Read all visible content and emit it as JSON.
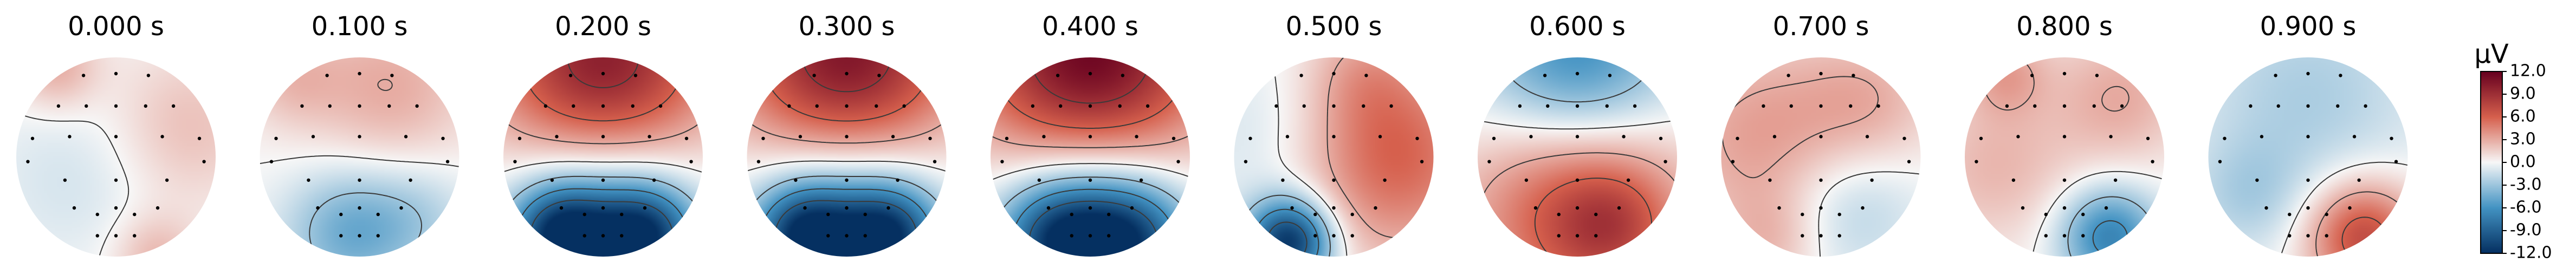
{
  "chart_data": {
    "type": "heatmap",
    "kind": "topomap-series",
    "colormap": "RdBu_r",
    "colors": {
      "neg_max": "#053061",
      "neg_mid": "#4393c3",
      "zero": "#f7f7f7",
      "pos_mid": "#d6604d",
      "pos_max": "#67001f",
      "contour": "#3a3a3a",
      "sensor": "#000000"
    },
    "colorbar": {
      "unit": "µV",
      "range": [
        -12.0,
        12.0
      ],
      "ticks": [
        12.0,
        9.0,
        6.0,
        3.0,
        0.0,
        -3.0,
        -6.0,
        -9.0,
        -12.0
      ],
      "tick_labels": [
        "12.0",
        "9.0",
        "6.0",
        "3.0",
        "0.0",
        "-3.0",
        "-6.0",
        "-9.0",
        "-12.0"
      ]
    },
    "contour_levels": [
      -9,
      -6,
      -3,
      0,
      3,
      6,
      9
    ],
    "sensor_grid": [
      [
        0.0,
        0.9
      ],
      [
        0.35,
        0.88
      ],
      [
        -0.35,
        0.88
      ],
      [
        0.0,
        0.55
      ],
      [
        -0.62,
        0.55
      ],
      [
        0.62,
        0.55
      ],
      [
        -0.32,
        0.55
      ],
      [
        0.32,
        0.55
      ],
      [
        -0.9,
        0.2
      ],
      [
        -0.5,
        0.22
      ],
      [
        0.0,
        0.22
      ],
      [
        0.5,
        0.22
      ],
      [
        0.9,
        0.2
      ],
      [
        -0.95,
        -0.05
      ],
      [
        0.95,
        -0.05
      ],
      [
        -0.55,
        -0.25
      ],
      [
        0.0,
        -0.25
      ],
      [
        0.55,
        -0.25
      ],
      [
        -0.45,
        -0.55
      ],
      [
        0.0,
        -0.55
      ],
      [
        0.45,
        -0.55
      ],
      [
        -0.2,
        -0.62
      ],
      [
        0.2,
        -0.62
      ],
      [
        -0.2,
        -0.85
      ],
      [
        0.0,
        -0.85
      ],
      [
        0.2,
        -0.85
      ]
    ],
    "frames": [
      {
        "label": "0.000 s",
        "time": 0.0,
        "sources": [
          {
            "x": 0.7,
            "y": 0.3,
            "amp": 2.2,
            "w": 0.55
          },
          {
            "x": -0.6,
            "y": 0.9,
            "amp": 3.0,
            "w": 0.3
          },
          {
            "x": 0.4,
            "y": -1.0,
            "amp": 2.5,
            "w": 0.3
          },
          {
            "x": -0.4,
            "y": -0.2,
            "amp": -1.2,
            "w": 0.6
          }
        ]
      },
      {
        "label": "0.100 s",
        "time": 0.1,
        "sources": [
          {
            "x": 0.3,
            "y": 0.7,
            "amp": 3.0,
            "w": 0.6
          },
          {
            "x": -0.7,
            "y": 0.8,
            "amp": 2.0,
            "w": 0.35
          },
          {
            "x": -0.1,
            "y": -0.75,
            "amp": -4.5,
            "w": 0.45
          },
          {
            "x": 0.6,
            "y": -0.6,
            "amp": -2.0,
            "w": 0.4
          }
        ]
      },
      {
        "label": "0.200 s",
        "time": 0.2,
        "sources": [
          {
            "x": 0.0,
            "y": 0.9,
            "amp": 10.5,
            "w": 0.8
          },
          {
            "x": -0.4,
            "y": -0.8,
            "amp": -11.0,
            "w": 0.35
          },
          {
            "x": 0.4,
            "y": -0.8,
            "amp": -10.0,
            "w": 0.35
          },
          {
            "x": 0.0,
            "y": -0.5,
            "amp": -5.0,
            "w": 0.7
          }
        ]
      },
      {
        "label": "0.300 s",
        "time": 0.3,
        "sources": [
          {
            "x": 0.0,
            "y": 0.95,
            "amp": 11.0,
            "w": 0.8
          },
          {
            "x": -0.4,
            "y": -0.8,
            "amp": -10.5,
            "w": 0.35
          },
          {
            "x": 0.4,
            "y": -0.8,
            "amp": -10.0,
            "w": 0.35
          },
          {
            "x": 0.0,
            "y": -0.5,
            "amp": -5.0,
            "w": 0.7
          }
        ]
      },
      {
        "label": "0.400 s",
        "time": 0.4,
        "sources": [
          {
            "x": 0.0,
            "y": 0.95,
            "amp": 12.0,
            "w": 0.85
          },
          {
            "x": -0.3,
            "y": -0.85,
            "amp": -9.0,
            "w": 0.4
          },
          {
            "x": 0.4,
            "y": -0.85,
            "amp": -8.5,
            "w": 0.4
          },
          {
            "x": 0.0,
            "y": -0.5,
            "amp": -5.0,
            "w": 0.7
          }
        ]
      },
      {
        "label": "0.500 s",
        "time": 0.5,
        "sources": [
          {
            "x": 0.6,
            "y": 0.0,
            "amp": 6.0,
            "w": 0.7
          },
          {
            "x": -0.45,
            "y": -0.85,
            "amp": -12.0,
            "w": 0.3
          },
          {
            "x": -0.6,
            "y": 0.2,
            "amp": -1.5,
            "w": 0.6
          },
          {
            "x": 0.3,
            "y": 0.85,
            "amp": 2.0,
            "w": 0.4
          }
        ]
      },
      {
        "label": "0.600 s",
        "time": 0.6,
        "sources": [
          {
            "x": 0.0,
            "y": 0.95,
            "amp": -7.0,
            "w": 0.7
          },
          {
            "x": 0.0,
            "y": -0.5,
            "amp": 7.0,
            "w": 0.8
          },
          {
            "x": 0.35,
            "y": -0.7,
            "amp": 3.0,
            "w": 0.4
          }
        ]
      },
      {
        "label": "0.700 s",
        "time": 0.7,
        "sources": [
          {
            "x": -0.6,
            "y": 0.2,
            "amp": 3.5,
            "w": 0.7
          },
          {
            "x": 0.5,
            "y": 0.55,
            "amp": 2.5,
            "w": 0.5
          },
          {
            "x": 0.3,
            "y": -0.5,
            "amp": -2.5,
            "w": 0.5
          },
          {
            "x": -0.5,
            "y": -0.85,
            "amp": 2.0,
            "w": 0.35
          }
        ]
      },
      {
        "label": "0.800 s",
        "time": 0.8,
        "sources": [
          {
            "x": 0.55,
            "y": 0.6,
            "amp": 3.0,
            "w": 0.5
          },
          {
            "x": -0.7,
            "y": -0.1,
            "amp": 2.5,
            "w": 0.55
          },
          {
            "x": 0.45,
            "y": -0.8,
            "amp": -7.0,
            "w": 0.35
          },
          {
            "x": -0.6,
            "y": 0.85,
            "amp": 3.0,
            "w": 0.3
          }
        ]
      },
      {
        "label": "0.900 s",
        "time": 0.9,
        "sources": [
          {
            "x": 0.0,
            "y": 0.6,
            "amp": -2.5,
            "w": 0.8
          },
          {
            "x": 0.55,
            "y": -0.8,
            "amp": 7.5,
            "w": 0.4
          },
          {
            "x": -0.6,
            "y": -0.4,
            "amp": -2.0,
            "w": 0.4
          }
        ]
      }
    ]
  }
}
